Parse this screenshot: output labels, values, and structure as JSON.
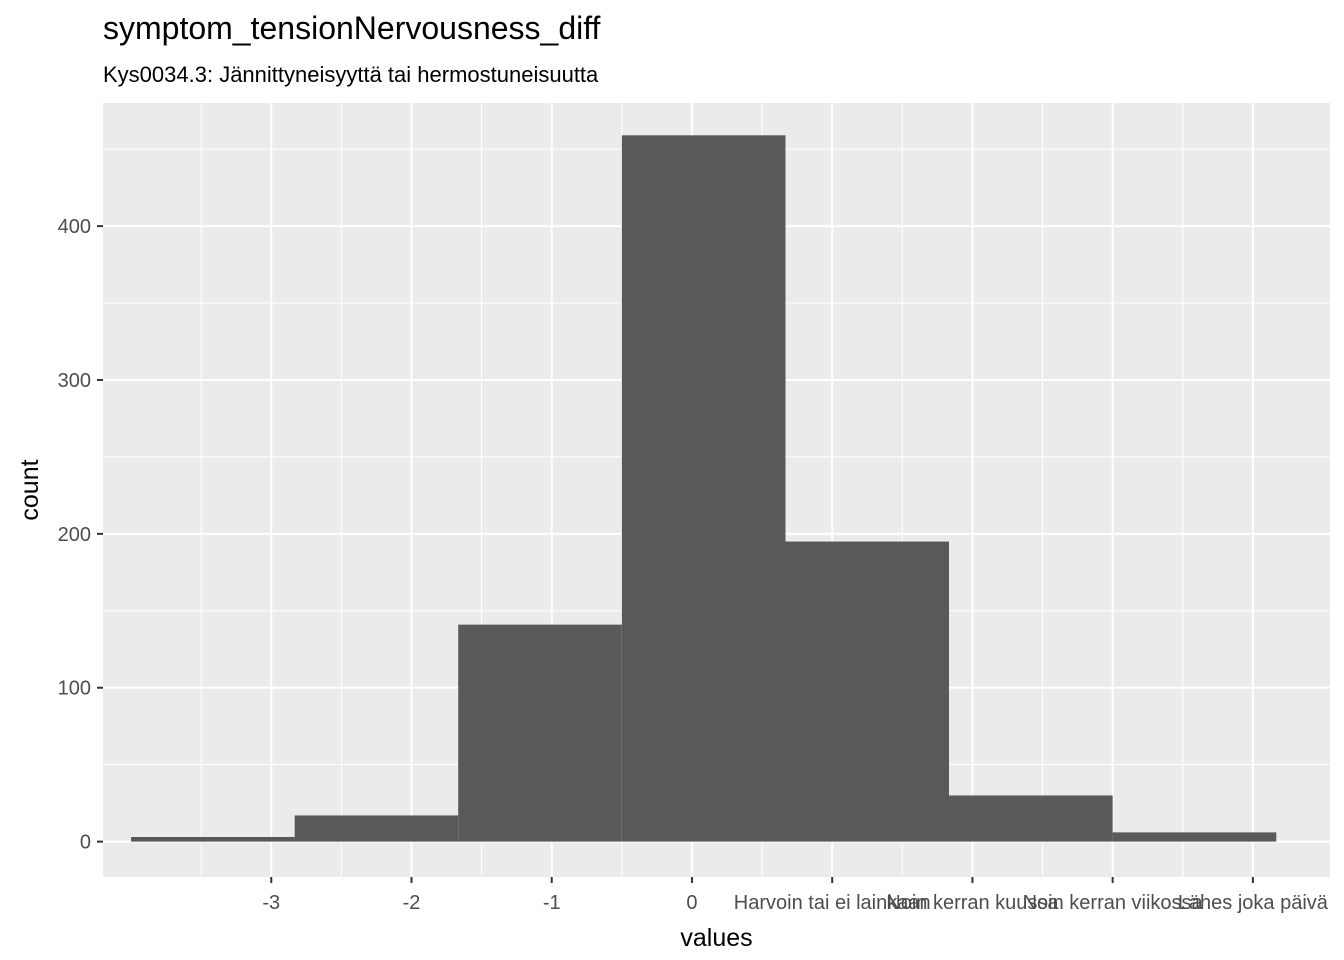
{
  "title": "symptom_tensionNervousness_diff",
  "subtitle": "Kys0034.3: Jännittyneisyyttä tai hermostuneisuutta",
  "chart_data": {
    "type": "bar",
    "title": "symptom_tensionNervousness_diff",
    "subtitle": "Kys0034.3: Jännittyneisyyttä tai hermostuneisuutta",
    "xlabel": "values",
    "ylabel": "count",
    "xlim": [
      -4.2,
      4.55
    ],
    "ylim": [
      -23,
      480
    ],
    "x_ticks": [
      -3,
      -2,
      -1,
      0,
      1,
      2,
      3
    ],
    "x_tick_labels": [
      "-3",
      "-2",
      "-1",
      "0",
      "Harvoin tai ei lainkaan",
      "Noin kerran kuussa",
      "Noin kerran viikossa"
    ],
    "x_tick_label_extra": {
      "x": 4,
      "label": "Lähes joka päivä"
    },
    "y_ticks": [
      0,
      100,
      200,
      300,
      400
    ],
    "y_tick_labels": [
      "0",
      "100",
      "200",
      "300",
      "400"
    ],
    "bins": [
      {
        "x0": -4.0,
        "x1": -2.833,
        "count": 3
      },
      {
        "x0": -2.833,
        "x1": -1.667,
        "count": 17
      },
      {
        "x0": -1.667,
        "x1": -0.5,
        "count": 141
      },
      {
        "x0": -0.5,
        "x1": 0.667,
        "count": 459
      },
      {
        "x0": 0.667,
        "x1": 1.833,
        "count": 195
      },
      {
        "x0": 1.833,
        "x1": 3.0,
        "count": 30
      },
      {
        "x0": 3.0,
        "x1": 4.167,
        "count": 6
      }
    ],
    "grid": true,
    "bar_color": "#595959",
    "panel_color": "#ebebeb",
    "grid_color": "#ffffff"
  }
}
